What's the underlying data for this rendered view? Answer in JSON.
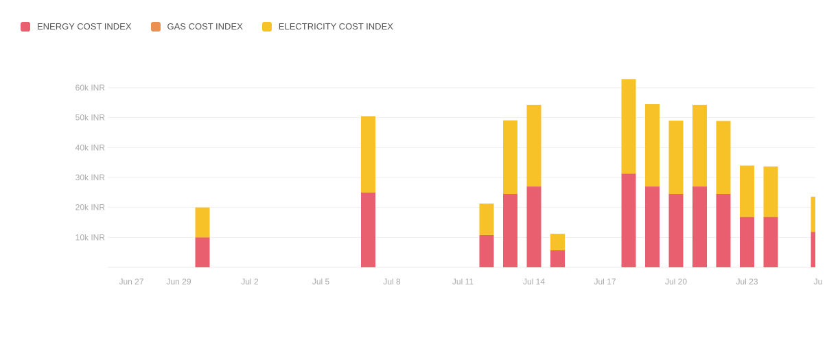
{
  "legend": {
    "items": [
      {
        "label": "ENERGY COST INDEX",
        "color": "#e95f6f"
      },
      {
        "label": "GAS COST INDEX",
        "color": "#ec9050"
      },
      {
        "label": "ELECTRICITY COST INDEX",
        "color": "#f6c227"
      }
    ]
  },
  "chart_data": {
    "type": "bar",
    "stacked": true,
    "x_start_date": "Jun 26",
    "x_tick_labels": [
      "Jun 27",
      "Jun 29",
      "Jul 2",
      "Jul 5",
      "Jul 8",
      "Jul 11",
      "Jul 14",
      "Jul 17",
      "Jul 20",
      "Jul 23",
      "Ju"
    ],
    "categories": [
      "Jun 30",
      "Jul 7",
      "Jul 12",
      "Jul 13",
      "Jul 14",
      "Jul 15",
      "Jul 18",
      "Jul 19",
      "Jul 20",
      "Jul 21",
      "Jul 22",
      "Jul 23",
      "Jul 24",
      "Jul 26"
    ],
    "series": [
      {
        "name": "ENERGY COST INDEX",
        "color": "#e95f6f",
        "values": [
          10000,
          25000,
          10800,
          24500,
          27000,
          5700,
          31300,
          27000,
          24500,
          27000,
          24500,
          16800,
          16800,
          11800
        ]
      },
      {
        "name": "GAS COST INDEX",
        "color": "#ec9050",
        "values": [
          0,
          0,
          0,
          0,
          0,
          0,
          0,
          0,
          0,
          0,
          0,
          0,
          0,
          0
        ]
      },
      {
        "name": "ELECTRICITY COST INDEX",
        "color": "#f6c227",
        "values": [
          10000,
          25500,
          10500,
          24600,
          27300,
          5500,
          31600,
          27500,
          24500,
          27300,
          24400,
          17200,
          16900,
          11800
        ]
      }
    ],
    "y_ticks": [
      "10k INR",
      "20k INR",
      "30k INR",
      "40k INR",
      "50k INR",
      "60k INR"
    ],
    "ylim": [
      0,
      60000
    ],
    "grid": true,
    "legend_position": "top-left"
  }
}
